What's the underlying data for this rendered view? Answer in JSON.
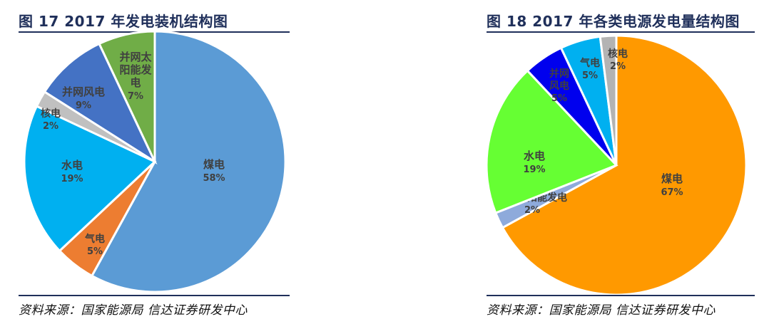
{
  "charts": [
    {
      "title": "图 17 2017 年发电装机结构图",
      "source": "资料来源：国家能源局   信达证券研发中心"
    },
    {
      "title": "图 18 2017 年各类电源发电量结构图",
      "source": "资料来源：国家能源局   信达证券研发中心"
    }
  ],
  "chart_data": [
    {
      "type": "pie",
      "title": "图 17 2017 年发电装机结构图",
      "slices": [
        {
          "label": "煤电",
          "value": 58,
          "percent_label": "58%",
          "color": "#5b9bd5"
        },
        {
          "label": "气电",
          "value": 5,
          "percent_label": "5%",
          "color": "#ed7d31"
        },
        {
          "label": "水电",
          "value": 19,
          "percent_label": "19%",
          "color": "#00b0f0"
        },
        {
          "label": "核电",
          "value": 2,
          "percent_label": "2%",
          "color": "#c0c0c0"
        },
        {
          "label": "并网风电",
          "value": 9,
          "percent_label": "9%",
          "color": "#4472c4"
        },
        {
          "label": "并网太阳能发电",
          "value": 7,
          "percent_label": "7%",
          "color": "#70ad47"
        }
      ]
    },
    {
      "type": "pie",
      "title": "图 18 2017 年各类电源发电量结构图",
      "slices": [
        {
          "label": "煤电",
          "value": 67,
          "percent_label": "67%",
          "color": "#ff9900"
        },
        {
          "label": "并网太阳能发电",
          "value": 2,
          "percent_label": "2%",
          "color": "#8eaadb"
        },
        {
          "label": "水电",
          "value": 19,
          "percent_label": "19%",
          "color": "#66ff33"
        },
        {
          "label": "并网风电",
          "value": 5,
          "percent_label": "5%",
          "color": "#0000ee"
        },
        {
          "label": "气电",
          "value": 5,
          "percent_label": "5%",
          "color": "#00b0f0"
        },
        {
          "label": "核电",
          "value": 2,
          "percent_label": "2%",
          "color": "#b3b3b3"
        }
      ]
    }
  ]
}
